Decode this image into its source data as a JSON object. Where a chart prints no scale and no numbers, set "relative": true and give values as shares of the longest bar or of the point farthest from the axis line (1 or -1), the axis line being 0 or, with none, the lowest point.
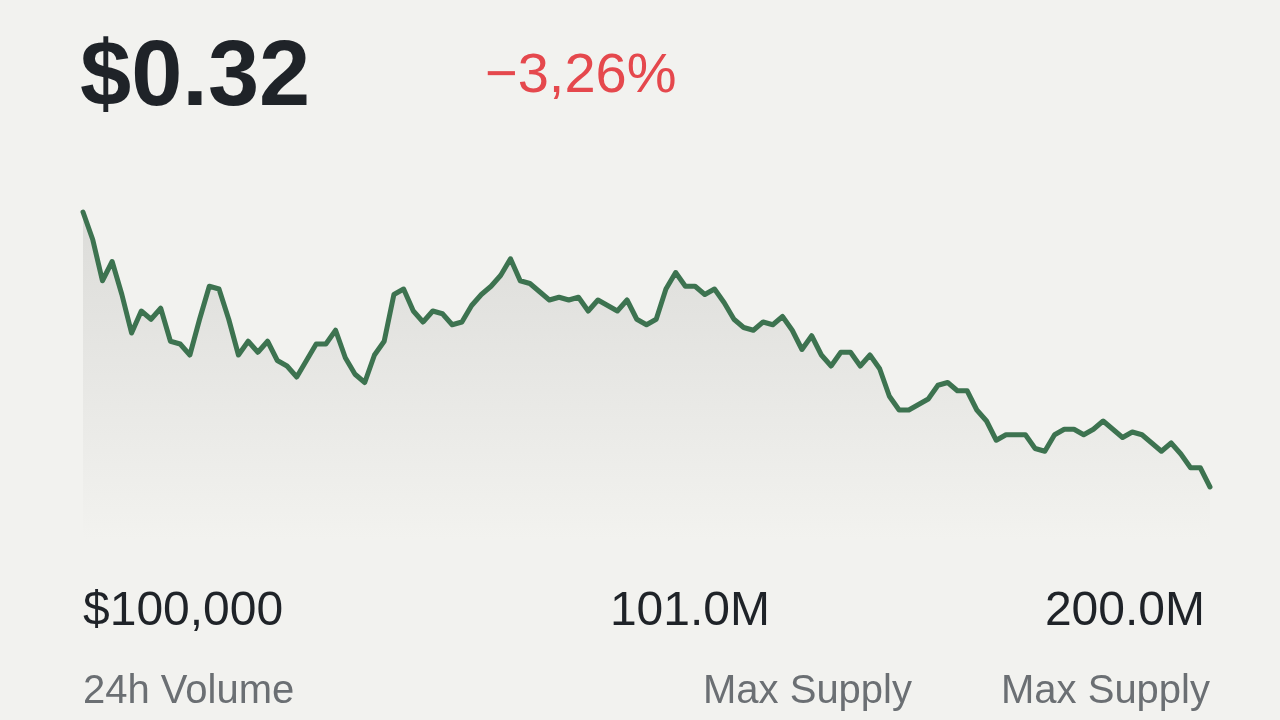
{
  "chart_data": {
    "type": "area",
    "title": "$0.32",
    "subtitle": "−3,26%",
    "relative": true,
    "color": "#3d7350",
    "categories": [
      null,
      null,
      null,
      null,
      null,
      null,
      null,
      null,
      null,
      null,
      null,
      null,
      null,
      null,
      null,
      null,
      null,
      null,
      null,
      null,
      null,
      null,
      null,
      null,
      null,
      null,
      null,
      null,
      null,
      null,
      null,
      null,
      null,
      null,
      null,
      null,
      null,
      null,
      null,
      null,
      null,
      null,
      null,
      null,
      null,
      null,
      null,
      null,
      null,
      null,
      null,
      null,
      null,
      null,
      null,
      null,
      null,
      null,
      null,
      null,
      null,
      null,
      null,
      null,
      null,
      null,
      null,
      null,
      null,
      null,
      null,
      null,
      null,
      null,
      null,
      null,
      null,
      null,
      null,
      null,
      null,
      null,
      null,
      null,
      null,
      null,
      null,
      null,
      null,
      null,
      null,
      null,
      null,
      null,
      null,
      null,
      null,
      null,
      null,
      null,
      null,
      null,
      null,
      null,
      null,
      null,
      null,
      null,
      null,
      null,
      null,
      null,
      null,
      null,
      null,
      null,
      null
    ],
    "values": [
      1.0,
      0.9,
      0.75,
      0.82,
      0.7,
      0.56,
      0.64,
      0.61,
      0.65,
      0.53,
      0.52,
      0.48,
      0.61,
      0.73,
      0.72,
      0.61,
      0.48,
      0.53,
      0.49,
      0.53,
      0.46,
      0.44,
      0.4,
      0.46,
      0.52,
      0.52,
      0.57,
      0.47,
      0.41,
      0.38,
      0.48,
      0.53,
      0.7,
      0.72,
      0.64,
      0.6,
      0.64,
      0.63,
      0.59,
      0.6,
      0.66,
      0.7,
      0.73,
      0.77,
      0.83,
      0.75,
      0.74,
      0.71,
      0.68,
      0.69,
      0.68,
      0.69,
      0.64,
      0.68,
      0.66,
      0.64,
      0.68,
      0.61,
      0.59,
      0.61,
      0.72,
      0.78,
      0.73,
      0.73,
      0.7,
      0.72,
      0.67,
      0.61,
      0.58,
      0.57,
      0.6,
      0.59,
      0.62,
      0.57,
      0.5,
      0.55,
      0.48,
      0.44,
      0.49,
      0.49,
      0.44,
      0.48,
      0.43,
      0.33,
      0.28,
      0.28,
      0.3,
      0.32,
      0.37,
      0.38,
      0.35,
      0.35,
      0.28,
      0.24,
      0.17,
      0.19,
      0.19,
      0.19,
      0.14,
      0.13,
      0.19,
      0.21,
      0.21,
      0.19,
      0.21,
      0.24,
      0.21,
      0.18,
      0.2,
      0.19,
      0.16,
      0.13,
      0.16,
      0.12,
      0.07,
      0.07,
      0.0
    ],
    "annotations": [
      "$100,000",
      "24h Volume",
      "101.0M",
      "Max Supply",
      "200.0M",
      "Max Supply"
    ]
  }
}
